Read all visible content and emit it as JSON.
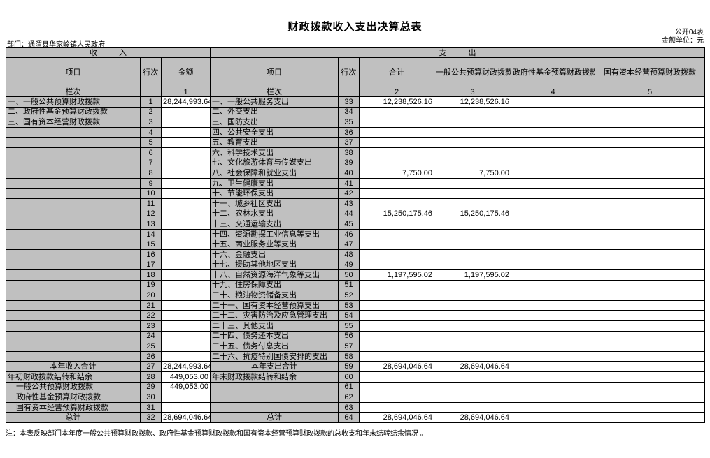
{
  "meta": {
    "title": "财政拨款收入支出决算总表",
    "table_code": "公开04表",
    "unit_label": "金额单位：元",
    "department": "部门：通渭县华家岭镇人民政府",
    "note": "注：本表反映部门本年度一般公共预算财政拨款、政府性基金预算财政拨款和国有资本经营预算财政拨款的总收支和年末结转结余情况 。"
  },
  "table": {
    "income_header": "收  入",
    "expense_header": "支  出",
    "columns": {
      "income": [
        "项目",
        "行次",
        "金额"
      ],
      "expense": [
        "项目",
        "行次",
        "合计",
        "一般公共预算财政拨款",
        "政府性基金预算财政拨款",
        "国有资本经营预算财政拨款"
      ]
    },
    "colindex": {
      "label": "栏次",
      "income_amount": "1",
      "expense": [
        "2",
        "3",
        "4",
        "5"
      ]
    },
    "rows": [
      {
        "income": {
          "label": "一、一般公共预算财政拨款",
          "line": "1",
          "amount": "28,244,993.64"
        },
        "expense": {
          "label": "一、一般公共服务支出",
          "line": "33",
          "total": "12,238,526.16",
          "general": "12,238,526.16",
          "govfund": "",
          "statecap": ""
        }
      },
      {
        "income": {
          "label": "二、政府性基金预算财政拨款",
          "line": "2",
          "amount": ""
        },
        "expense": {
          "label": "二、外交支出",
          "line": "34",
          "total": "",
          "general": "",
          "govfund": "",
          "statecap": ""
        }
      },
      {
        "income": {
          "label": "三、国有资本经营财政拨款",
          "line": "3",
          "amount": ""
        },
        "expense": {
          "label": "三、国防支出",
          "line": "35",
          "total": "",
          "general": "",
          "govfund": "",
          "statecap": ""
        }
      },
      {
        "income": {
          "label": "",
          "line": "4",
          "amount": ""
        },
        "expense": {
          "label": "四、公共安全支出",
          "line": "36",
          "total": "",
          "general": "",
          "govfund": "",
          "statecap": ""
        }
      },
      {
        "income": {
          "label": "",
          "line": "5",
          "amount": ""
        },
        "expense": {
          "label": "五、教育支出",
          "line": "37",
          "total": "",
          "general": "",
          "govfund": "",
          "statecap": ""
        }
      },
      {
        "income": {
          "label": "",
          "line": "6",
          "amount": ""
        },
        "expense": {
          "label": "六、科学技术支出",
          "line": "38",
          "total": "",
          "general": "",
          "govfund": "",
          "statecap": ""
        }
      },
      {
        "income": {
          "label": "",
          "line": "7",
          "amount": ""
        },
        "expense": {
          "label": "七、文化旅游体育与传媒支出",
          "line": "39",
          "total": "",
          "general": "",
          "govfund": "",
          "statecap": ""
        }
      },
      {
        "income": {
          "label": "",
          "line": "8",
          "amount": ""
        },
        "expense": {
          "label": "八、社会保障和就业支出",
          "line": "40",
          "total": "7,750.00",
          "general": "7,750.00",
          "govfund": "",
          "statecap": ""
        }
      },
      {
        "income": {
          "label": "",
          "line": "9",
          "amount": ""
        },
        "expense": {
          "label": "九、卫生健康支出",
          "line": "41",
          "total": "",
          "general": "",
          "govfund": "",
          "statecap": ""
        }
      },
      {
        "income": {
          "label": "",
          "line": "10",
          "amount": ""
        },
        "expense": {
          "label": "十、节能环保支出",
          "line": "42",
          "total": "",
          "general": "",
          "govfund": "",
          "statecap": ""
        }
      },
      {
        "income": {
          "label": "",
          "line": "11",
          "amount": ""
        },
        "expense": {
          "label": "十一、城乡社区支出",
          "line": "43",
          "total": "",
          "general": "",
          "govfund": "",
          "statecap": ""
        }
      },
      {
        "income": {
          "label": "",
          "line": "12",
          "amount": ""
        },
        "expense": {
          "label": "十二、农林水支出",
          "line": "44",
          "total": "15,250,175.46",
          "general": "15,250,175.46",
          "govfund": "",
          "statecap": ""
        }
      },
      {
        "income": {
          "label": "",
          "line": "13",
          "amount": ""
        },
        "expense": {
          "label": "十三、交通运输支出",
          "line": "45",
          "total": "",
          "general": "",
          "govfund": "",
          "statecap": ""
        }
      },
      {
        "income": {
          "label": "",
          "line": "14",
          "amount": ""
        },
        "expense": {
          "label": "十四、资源勘探工业信息等支出",
          "line": "46",
          "total": "",
          "general": "",
          "govfund": "",
          "statecap": ""
        }
      },
      {
        "income": {
          "label": "",
          "line": "15",
          "amount": ""
        },
        "expense": {
          "label": "十五、商业服务业等支出",
          "line": "47",
          "total": "",
          "general": "",
          "govfund": "",
          "statecap": ""
        }
      },
      {
        "income": {
          "label": "",
          "line": "16",
          "amount": ""
        },
        "expense": {
          "label": "十六、金融支出",
          "line": "48",
          "total": "",
          "general": "",
          "govfund": "",
          "statecap": ""
        }
      },
      {
        "income": {
          "label": "",
          "line": "17",
          "amount": ""
        },
        "expense": {
          "label": "十七、援助其他地区支出",
          "line": "49",
          "total": "",
          "general": "",
          "govfund": "",
          "statecap": ""
        }
      },
      {
        "income": {
          "label": "",
          "line": "18",
          "amount": ""
        },
        "expense": {
          "label": "十八、自然资源海洋气象等支出",
          "line": "50",
          "total": "1,197,595.02",
          "general": "1,197,595.02",
          "govfund": "",
          "statecap": ""
        }
      },
      {
        "income": {
          "label": "",
          "line": "19",
          "amount": ""
        },
        "expense": {
          "label": "十九、住房保障支出",
          "line": "51",
          "total": "",
          "general": "",
          "govfund": "",
          "statecap": ""
        }
      },
      {
        "income": {
          "label": "",
          "line": "20",
          "amount": ""
        },
        "expense": {
          "label": "二十、粮油物资储备支出",
          "line": "52",
          "total": "",
          "general": "",
          "govfund": "",
          "statecap": ""
        }
      },
      {
        "income": {
          "label": "",
          "line": "21",
          "amount": ""
        },
        "expense": {
          "label": "二十一、国有资本经营预算支出",
          "line": "53",
          "total": "",
          "general": "",
          "govfund": "",
          "statecap": ""
        }
      },
      {
        "income": {
          "label": "",
          "line": "22",
          "amount": ""
        },
        "expense": {
          "label": "二十二、灾害防治及应急管理支出",
          "line": "54",
          "total": "",
          "general": "",
          "govfund": "",
          "statecap": ""
        }
      },
      {
        "income": {
          "label": "",
          "line": "23",
          "amount": ""
        },
        "expense": {
          "label": "二十三、其他支出",
          "line": "55",
          "total": "",
          "general": "",
          "govfund": "",
          "statecap": ""
        }
      },
      {
        "income": {
          "label": "",
          "line": "24",
          "amount": ""
        },
        "expense": {
          "label": "二十四、债务还本支出",
          "line": "56",
          "total": "",
          "general": "",
          "govfund": "",
          "statecap": ""
        }
      },
      {
        "income": {
          "label": "",
          "line": "25",
          "amount": ""
        },
        "expense": {
          "label": "二十五、债务付息支出",
          "line": "57",
          "total": "",
          "general": "",
          "govfund": "",
          "statecap": ""
        }
      },
      {
        "income": {
          "label": "",
          "line": "26",
          "amount": ""
        },
        "expense": {
          "label": "二十六、抗疫特别国债安排的支出",
          "line": "58",
          "total": "",
          "general": "",
          "govfund": "",
          "statecap": ""
        }
      },
      {
        "income": {
          "label": "本年收入合计",
          "line": "27",
          "amount": "28,244,993.64",
          "align": "center"
        },
        "expense": {
          "label": "本年支出合计",
          "line": "59",
          "total": "28,694,046.64",
          "general": "28,694,046.64",
          "govfund": "",
          "statecap": "",
          "align": "center"
        }
      },
      {
        "income": {
          "label": "年初财政拨款结转和结余",
          "line": "28",
          "amount": "449,053.00"
        },
        "expense": {
          "label": "年末财政拨款结转和结余",
          "line": "60",
          "total": "",
          "general": "",
          "govfund": "",
          "statecap": ""
        }
      },
      {
        "income": {
          "label": "一般公共预算财政拨款",
          "line": "29",
          "amount": "449,053.00",
          "indent": true
        },
        "expense": {
          "label": "",
          "line": "61",
          "total": "",
          "general": "",
          "govfund": "",
          "statecap": ""
        }
      },
      {
        "income": {
          "label": "政府性基金预算财政拨款",
          "line": "30",
          "amount": "",
          "indent": true
        },
        "expense": {
          "label": "",
          "line": "62",
          "total": "",
          "general": "",
          "govfund": "",
          "statecap": ""
        }
      },
      {
        "income": {
          "label": "国有资本经营预算财政拨款",
          "line": "31",
          "amount": "",
          "indent": true
        },
        "expense": {
          "label": "",
          "line": "63",
          "total": "",
          "general": "",
          "govfund": "",
          "statecap": ""
        }
      },
      {
        "income": {
          "label": "总计",
          "line": "32",
          "amount": "28,694,046.64",
          "align": "center"
        },
        "expense": {
          "label": "总计",
          "line": "64",
          "total": "28,694,046.64",
          "general": "28,694,046.64",
          "govfund": "",
          "statecap": "",
          "align": "center"
        }
      }
    ]
  }
}
